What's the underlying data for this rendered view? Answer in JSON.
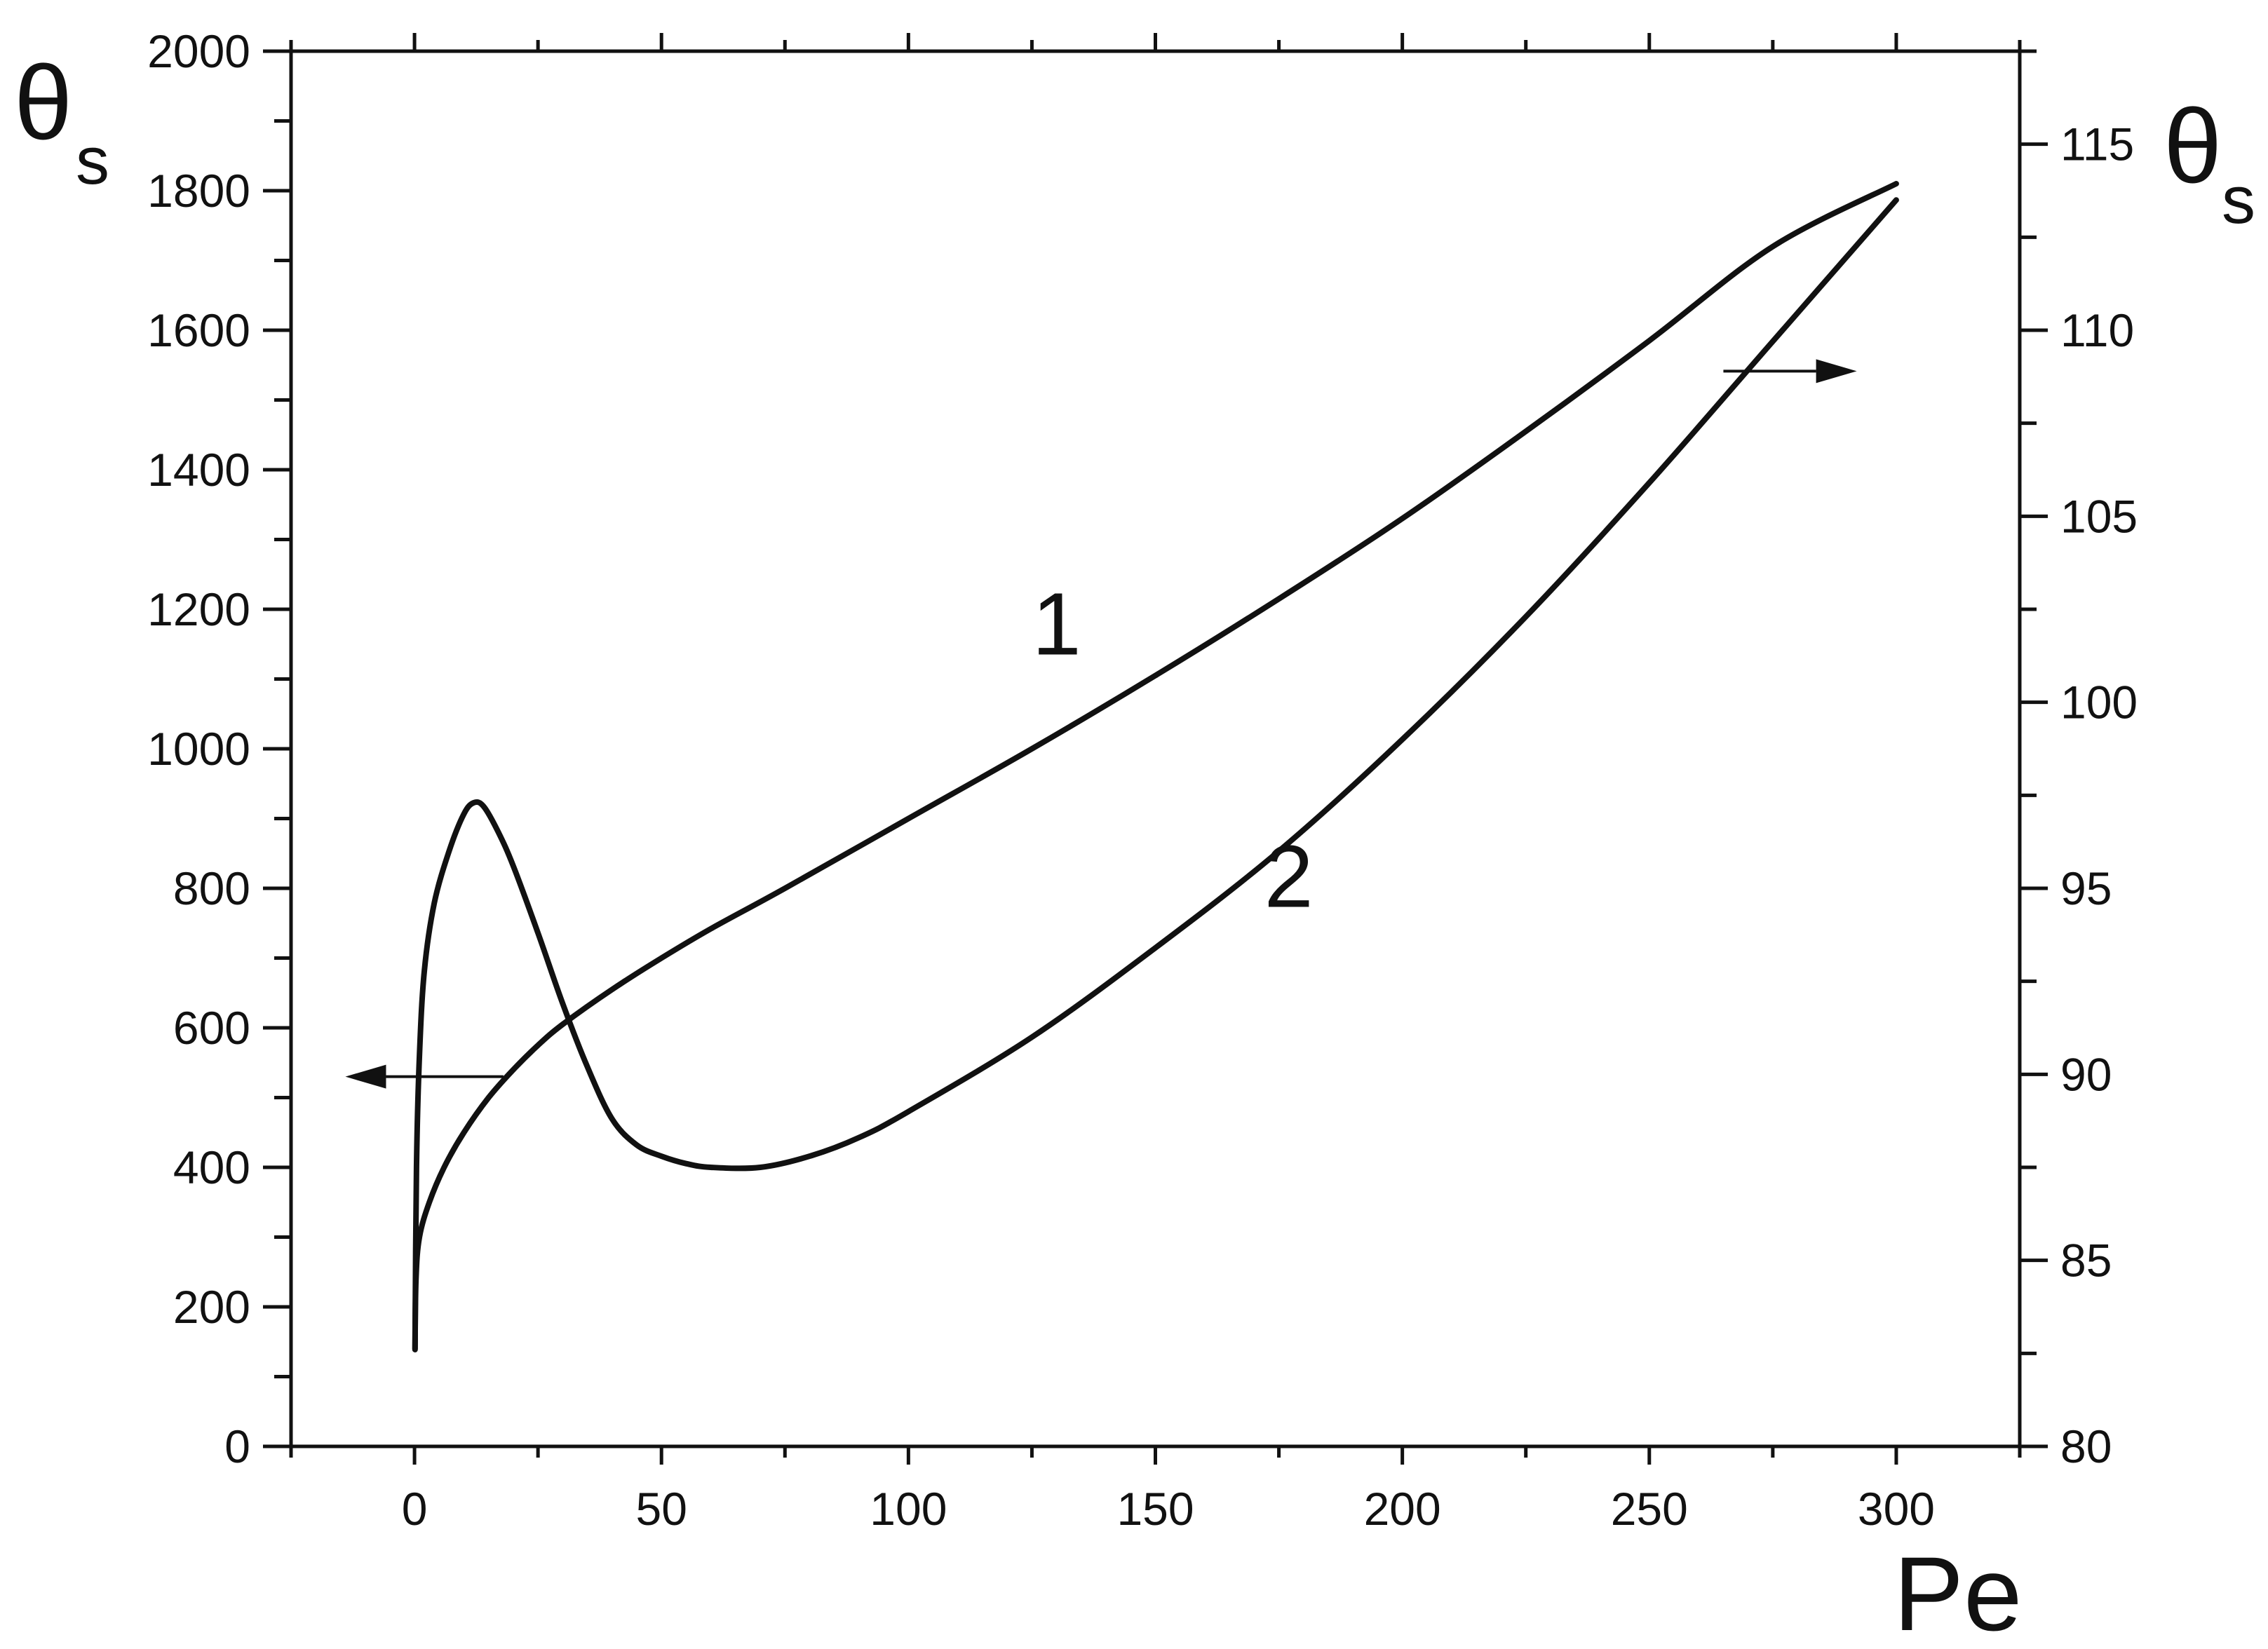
{
  "chart_data": {
    "type": "line",
    "title": "",
    "xlabel": "Pe",
    "ylabel_left": "θ",
    "ylabel_left_sub": "s",
    "ylabel_right": "θ",
    "ylabel_right_sub": "s",
    "xlim": [
      -25,
      325
    ],
    "ylim_left": [
      0,
      2000
    ],
    "ylim_right": [
      80,
      117.5
    ],
    "x_ticks": [
      0,
      50,
      100,
      150,
      200,
      250,
      300
    ],
    "y_left_ticks": [
      0,
      200,
      400,
      600,
      800,
      1000,
      1200,
      1400,
      1600,
      1800,
      2000
    ],
    "y_right_ticks": [
      80,
      85,
      90,
      95,
      100,
      105,
      110,
      115
    ],
    "grid": false,
    "legend": "none",
    "series": [
      {
        "name": "1",
        "axis": "left",
        "points": [
          [
            0.1,
            140
          ],
          [
            0.3,
            240
          ],
          [
            1,
            300
          ],
          [
            3,
            350
          ],
          [
            6,
            400
          ],
          [
            10,
            450
          ],
          [
            15,
            500
          ],
          [
            20,
            540
          ],
          [
            25,
            575
          ],
          [
            30,
            605
          ],
          [
            40,
            655
          ],
          [
            50,
            700
          ],
          [
            60,
            742
          ],
          [
            75,
            800
          ],
          [
            100,
            900
          ],
          [
            125,
            1000
          ],
          [
            150,
            1105
          ],
          [
            175,
            1215
          ],
          [
            200,
            1330
          ],
          [
            225,
            1455
          ],
          [
            250,
            1585
          ],
          [
            275,
            1720
          ],
          [
            300,
            1810
          ]
        ],
        "label_at": [
          130,
          1135
        ]
      },
      {
        "name": "2",
        "axis": "right",
        "points": [
          [
            0.1,
            82.6
          ],
          [
            0.4,
            87.5
          ],
          [
            1,
            90.5
          ],
          [
            2,
            92.8
          ],
          [
            4,
            94.6
          ],
          [
            7,
            96.0
          ],
          [
            10,
            97.0
          ],
          [
            12,
            97.3
          ],
          [
            14,
            97.2
          ],
          [
            17,
            96.5
          ],
          [
            20,
            95.6
          ],
          [
            25,
            93.8
          ],
          [
            30,
            91.9
          ],
          [
            35,
            90.2
          ],
          [
            40,
            88.8
          ],
          [
            45,
            88.1
          ],
          [
            50,
            87.8
          ],
          [
            55,
            87.6
          ],
          [
            60,
            87.5
          ],
          [
            70,
            87.5
          ],
          [
            80,
            87.8
          ],
          [
            90,
            88.3
          ],
          [
            100,
            89.0
          ],
          [
            125,
            91.0
          ],
          [
            150,
            93.4
          ],
          [
            175,
            96.0
          ],
          [
            200,
            99.0
          ],
          [
            225,
            102.3
          ],
          [
            250,
            105.9
          ],
          [
            275,
            109.7
          ],
          [
            300,
            113.5
          ]
        ],
        "label_at": [
          177,
          94.5
        ]
      }
    ],
    "annotations": [
      {
        "text": "arrow-left",
        "from_x": 18,
        "to_x": -14,
        "y_left": 530
      },
      {
        "text": "arrow-right",
        "from_x": 265,
        "to_x": 292,
        "y_right": 108.9
      }
    ]
  }
}
